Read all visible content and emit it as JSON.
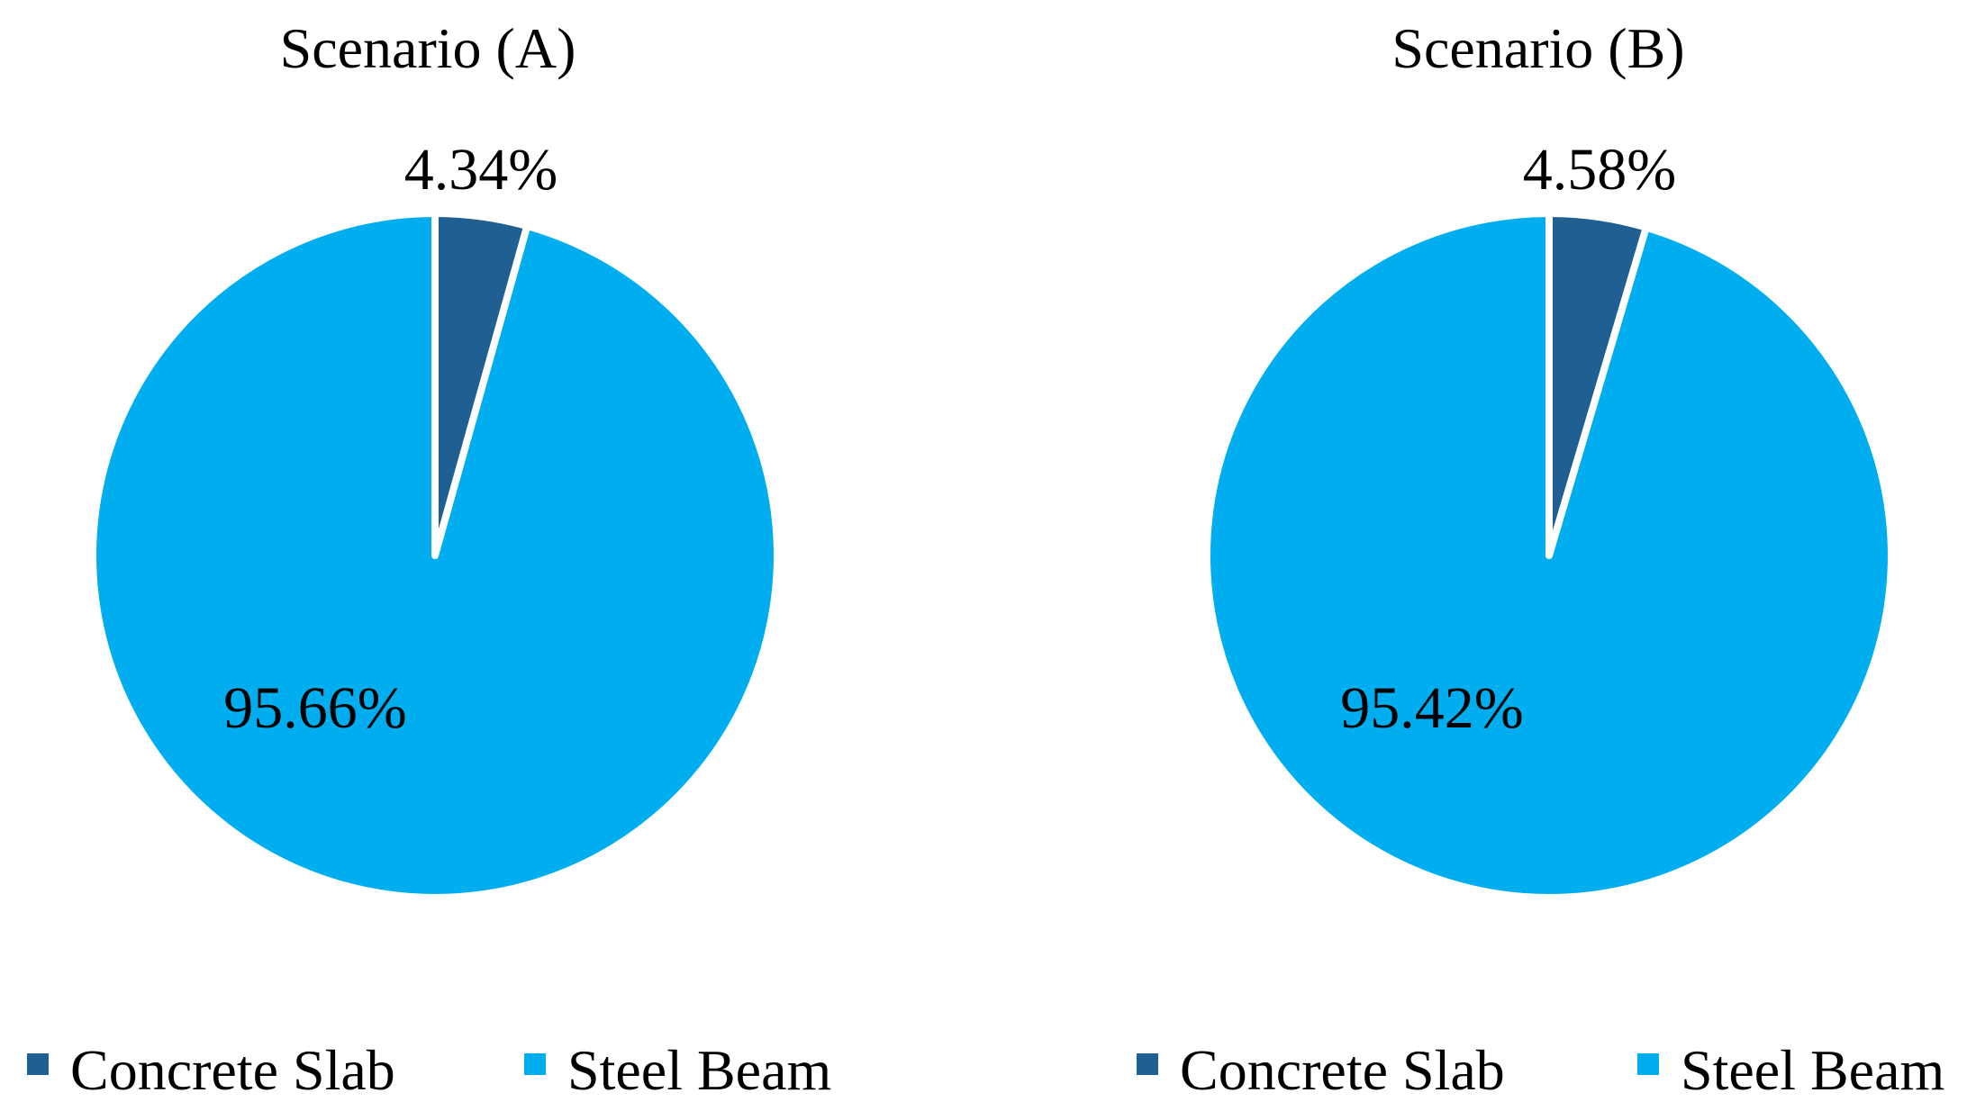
{
  "colors": {
    "concrete_slab": "#1F5F91",
    "steel_beam": "#00AEEF",
    "separator": "#FFFFFF"
  },
  "chart_data": [
    {
      "type": "pie",
      "title": "Scenario (A)",
      "start": "12 o'clock, clockwise",
      "slices": [
        {
          "label": "Concrete Slab",
          "value": 4.34,
          "display": "4.34%"
        },
        {
          "label": "Steel Beam",
          "value": 95.66,
          "display": "95.66%"
        }
      ],
      "legend": {
        "position": "bottom",
        "entries": [
          "Concrete Slab",
          "Steel Beam"
        ]
      }
    },
    {
      "type": "pie",
      "title": "Scenario (B)",
      "start": "12 o'clock, clockwise",
      "slices": [
        {
          "label": "Concrete Slab",
          "value": 4.58,
          "display": "4.58%"
        },
        {
          "label": "Steel Beam",
          "value": 95.42,
          "display": "95.42%"
        }
      ],
      "legend": {
        "position": "bottom",
        "entries": [
          "Concrete Slab",
          "Steel Beam"
        ]
      }
    }
  ]
}
